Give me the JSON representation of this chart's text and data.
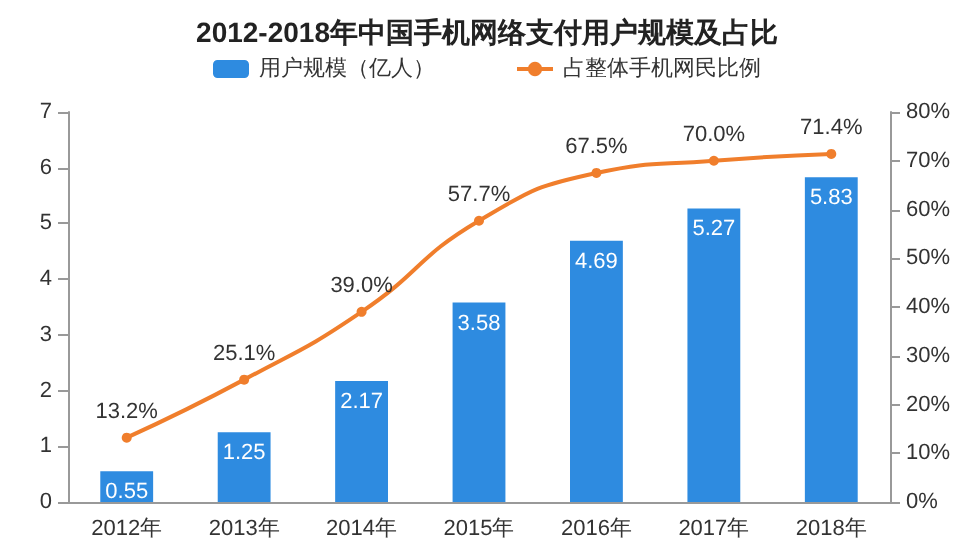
{
  "chart_data": {
    "type": "bar",
    "title": "2012-2018年中国手机网络支付用户规模及占比",
    "categories": [
      "2012年",
      "2013年",
      "2014年",
      "2015年",
      "2016年",
      "2017年",
      "2018年"
    ],
    "series": [
      {
        "name": "用户规模（亿人）",
        "color": "#2e8be0",
        "values": [
          0.55,
          1.25,
          2.17,
          3.58,
          4.69,
          5.27,
          5.83
        ],
        "value_labels": [
          "0.55",
          "1.25",
          "2.17",
          "3.58",
          "4.69",
          "5.27",
          "5.83"
        ]
      },
      {
        "name": "占整体手机网民比例",
        "type": "line",
        "axis": "y2",
        "color": "#f07e2c",
        "marker": "circle",
        "values": [
          13.2,
          25.1,
          39.0,
          57.7,
          67.5,
          70.0,
          71.4
        ],
        "value_labels": [
          "13.2%",
          "25.1%",
          "39.0%",
          "57.7%",
          "67.5%",
          "70.0%",
          "71.4%"
        ]
      }
    ],
    "ylim": [
      0,
      7
    ],
    "yticks": [
      0,
      1,
      2,
      3,
      4,
      5,
      6,
      7
    ],
    "y2lim": [
      0,
      80
    ],
    "y2ticks": [
      {
        "value": 0,
        "label": "0%"
      },
      {
        "value": 10,
        "label": "10%"
      },
      {
        "value": 20,
        "label": "20%"
      },
      {
        "value": 30,
        "label": "30%"
      },
      {
        "value": 40,
        "label": "40%"
      },
      {
        "value": 50,
        "label": "50%"
      },
      {
        "value": 60,
        "label": "60%"
      },
      {
        "value": 70,
        "label": "70%"
      },
      {
        "value": 80,
        "label": "80%"
      }
    ],
    "grid": false,
    "legend": "top"
  }
}
